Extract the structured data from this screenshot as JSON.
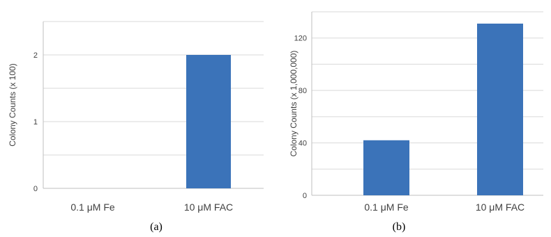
{
  "colors": {
    "bar": "#3b73b9",
    "grid": "#d9d9d9",
    "axis": "#bfbfbf"
  },
  "chart_data": [
    {
      "type": "bar",
      "caption": "(a)",
      "categories": [
        "0.1 μM Fe",
        "10 μM FAC"
      ],
      "values": [
        0,
        2
      ],
      "ylabel": "Colony Counts (x 100)",
      "ylim": [
        0,
        2.5
      ],
      "yticks": [
        0,
        1,
        2
      ],
      "yticklabels": [
        "0",
        "1",
        "2"
      ],
      "grid": true
    },
    {
      "type": "bar",
      "caption": "(b)",
      "categories": [
        "0.1 μM Fe",
        "10 μM FAC"
      ],
      "values": [
        42,
        131
      ],
      "ylabel": "Colony Counts (x 1,000,000)",
      "ylim": [
        0,
        140
      ],
      "yticks": [
        0,
        40,
        80,
        120
      ],
      "yticklabels": [
        "0",
        "40",
        "80",
        "120"
      ],
      "grid": true
    }
  ]
}
